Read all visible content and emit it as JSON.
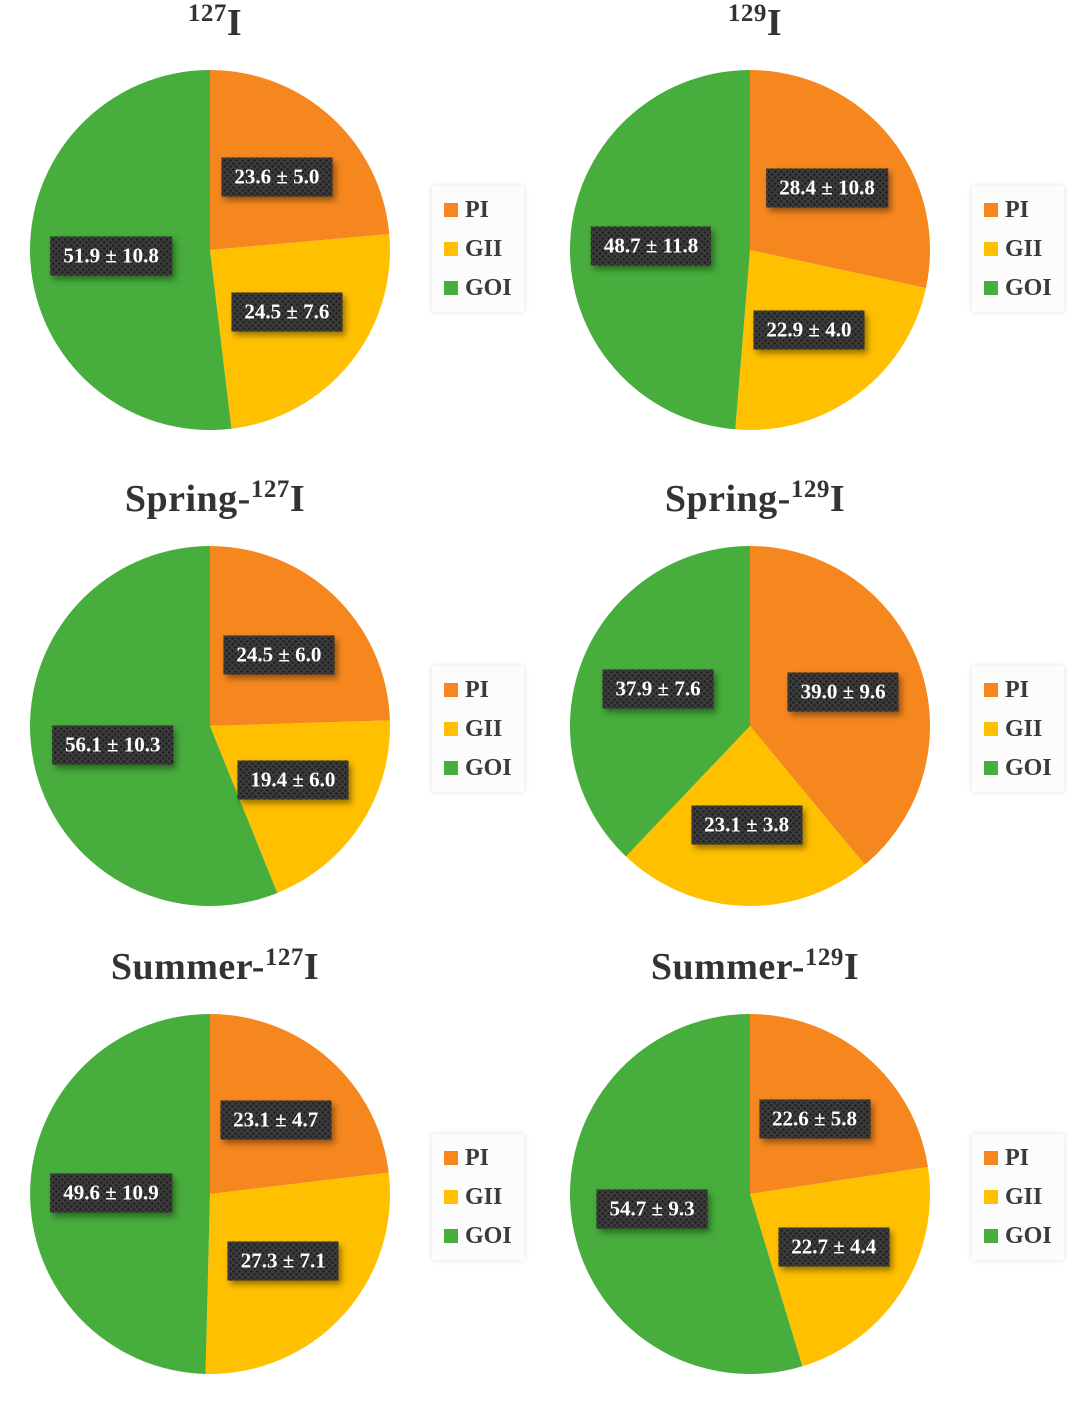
{
  "figure_colors": {
    "PI": "#F6871F",
    "GII": "#FFC000",
    "GOI": "#47AD3C",
    "label_box_background": "#3b3b3b",
    "label_text": "#ffffff",
    "legend_text": "#3a3a3a",
    "title_text": "#333333",
    "page_background": "#ffffff"
  },
  "chart_data": [
    {
      "type": "pie",
      "title": "127I",
      "title_parts": {
        "prefix": "",
        "superscript": "127",
        "base": "I"
      },
      "categories": [
        "PI",
        "GII",
        "GOI"
      ],
      "values": [
        23.6,
        24.5,
        51.9
      ],
      "errors": [
        5.0,
        7.6,
        10.8
      ],
      "labels": [
        "23.6 ± 5.0",
        "24.5 ± 7.6",
        "51.9 ± 10.8"
      ],
      "legend": [
        "PI",
        "GII",
        "GOI"
      ],
      "legend_position": "right",
      "colors": [
        "#F6871F",
        "#FFC000",
        "#47AD3C"
      ],
      "start_angle_deg": 0,
      "direction": "clockwise"
    },
    {
      "type": "pie",
      "title": "129I",
      "title_parts": {
        "prefix": "",
        "superscript": "129",
        "base": "I"
      },
      "categories": [
        "PI",
        "GII",
        "GOI"
      ],
      "values": [
        28.4,
        22.9,
        48.7
      ],
      "errors": [
        10.8,
        4.0,
        11.8
      ],
      "labels": [
        "28.4 ± 10.8",
        "22.9 ± 4.0",
        "48.7 ± 11.8"
      ],
      "legend": [
        "PI",
        "GII",
        "GOI"
      ],
      "legend_position": "right",
      "colors": [
        "#F6871F",
        "#FFC000",
        "#47AD3C"
      ],
      "start_angle_deg": 0,
      "direction": "clockwise"
    },
    {
      "type": "pie",
      "title": "Spring-127I",
      "title_parts": {
        "prefix": "Spring-",
        "superscript": "127",
        "base": "I"
      },
      "categories": [
        "PI",
        "GII",
        "GOI"
      ],
      "values": [
        24.5,
        19.4,
        56.1
      ],
      "errors": [
        6.0,
        6.0,
        10.3
      ],
      "labels": [
        "24.5 ± 6.0",
        "19.4 ± 6.0",
        "56.1 ± 10.3"
      ],
      "legend": [
        "PI",
        "GII",
        "GOI"
      ],
      "legend_position": "right",
      "colors": [
        "#F6871F",
        "#FFC000",
        "#47AD3C"
      ],
      "start_angle_deg": 0,
      "direction": "clockwise"
    },
    {
      "type": "pie",
      "title": "Spring-129I",
      "title_parts": {
        "prefix": "Spring-",
        "superscript": "129",
        "base": "I"
      },
      "categories": [
        "PI",
        "GII",
        "GOI"
      ],
      "values": [
        39.0,
        23.1,
        37.9
      ],
      "errors": [
        9.6,
        3.8,
        7.6
      ],
      "labels": [
        "39.0 ± 9.6",
        "23.1 ± 3.8",
        "37.9 ± 7.6"
      ],
      "legend": [
        "PI",
        "GII",
        "GOI"
      ],
      "legend_position": "right",
      "colors": [
        "#F6871F",
        "#FFC000",
        "#47AD3C"
      ],
      "start_angle_deg": 0,
      "direction": "clockwise"
    },
    {
      "type": "pie",
      "title": "Summer-127I",
      "title_parts": {
        "prefix": "Summer-",
        "superscript": "127",
        "base": "I"
      },
      "categories": [
        "PI",
        "GII",
        "GOI"
      ],
      "values": [
        23.1,
        27.3,
        49.6
      ],
      "errors": [
        4.7,
        7.1,
        10.9
      ],
      "labels": [
        "23.1 ± 4.7",
        "27.3 ± 7.1",
        "49.6 ± 10.9"
      ],
      "legend": [
        "PI",
        "GII",
        "GOI"
      ],
      "legend_position": "right",
      "colors": [
        "#F6871F",
        "#FFC000",
        "#47AD3C"
      ],
      "start_angle_deg": 0,
      "direction": "clockwise"
    },
    {
      "type": "pie",
      "title": "Summer-129I",
      "title_parts": {
        "prefix": "Summer-",
        "superscript": "129",
        "base": "I"
      },
      "categories": [
        "PI",
        "GII",
        "GOI"
      ],
      "values": [
        22.6,
        22.7,
        54.7
      ],
      "errors": [
        5.8,
        4.4,
        9.3
      ],
      "labels": [
        "22.6 ± 5.8",
        "22.7 ± 4.4",
        "54.7 ± 9.3"
      ],
      "legend": [
        "PI",
        "GII",
        "GOI"
      ],
      "legend_position": "right",
      "colors": [
        "#F6871F",
        "#FFC000",
        "#47AD3C"
      ],
      "start_angle_deg": 0,
      "direction": "clockwise"
    }
  ]
}
